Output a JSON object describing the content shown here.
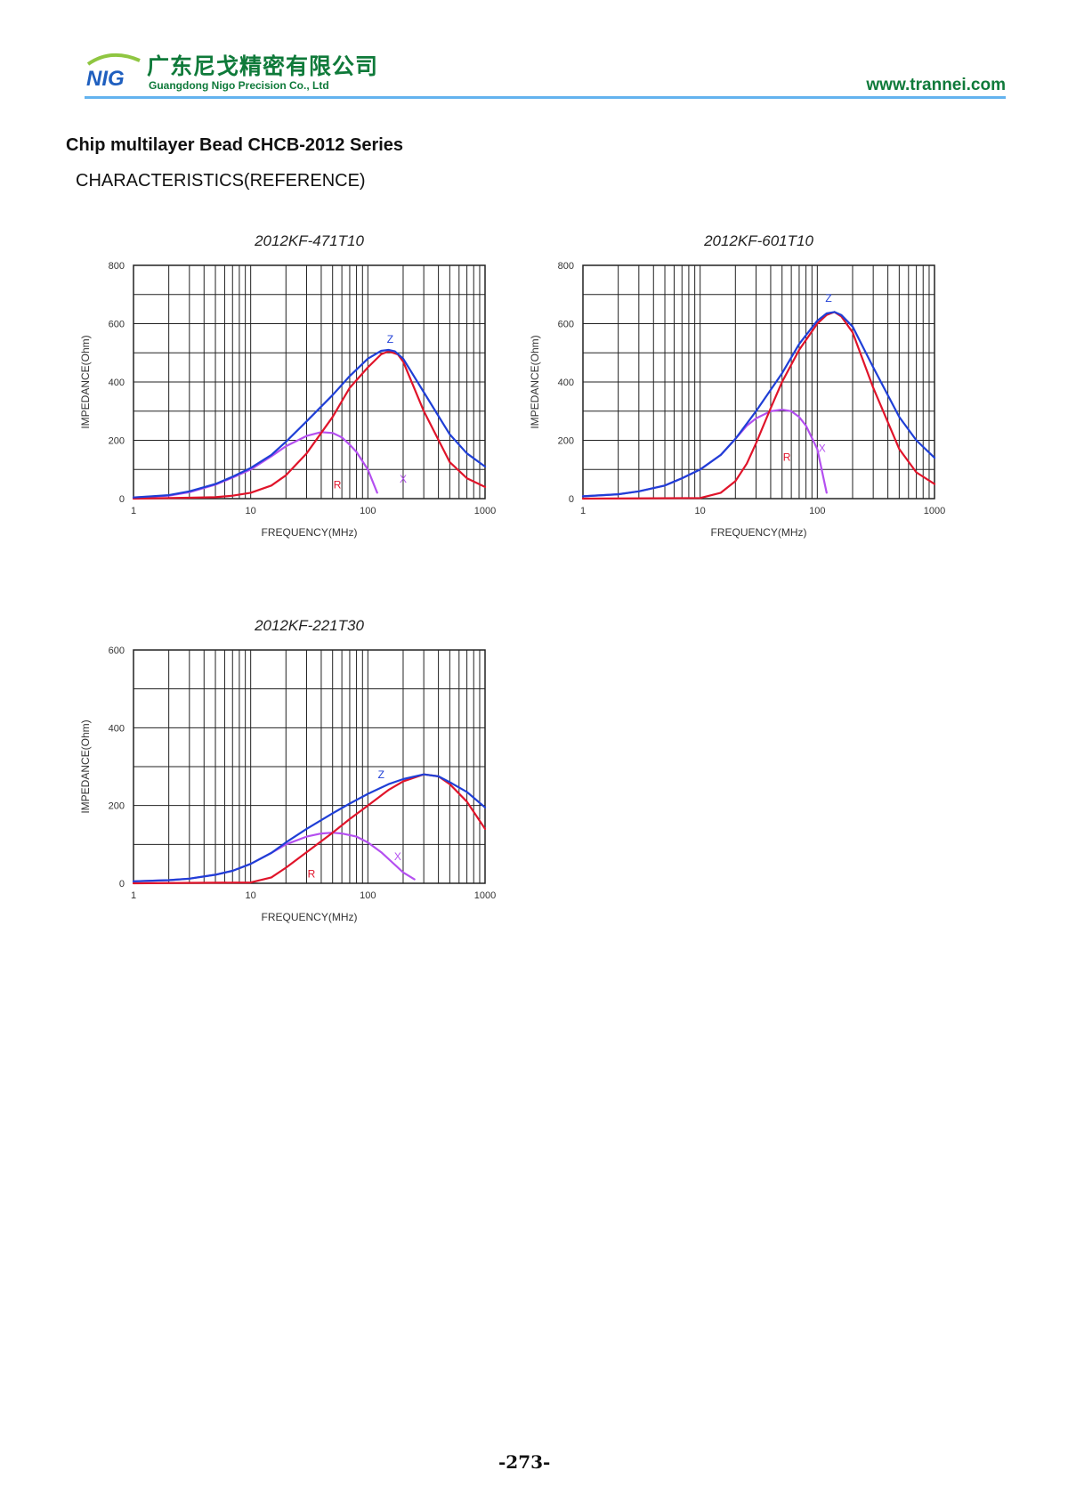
{
  "header": {
    "logo_text": "NIG",
    "company_cn": "广东尼戈精密有限公司",
    "company_en": "Guangdong Nigo Precision Co., Ltd",
    "website": "www.trannei.com"
  },
  "title": "Chip multilayer Bead CHCB-2012 Series",
  "subtitle": "CHARACTERISTICS(REFERENCE)",
  "page_number": "-273-",
  "colors": {
    "Z": "#1f3fd6",
    "R": "#e0142a",
    "X": "#b44ff0",
    "grid": "#222222",
    "brand": "#0f7a3a",
    "rule": "#63b3ef"
  },
  "chart_data": [
    {
      "type": "line",
      "title": "2012KF-471T10",
      "xlabel": "FREQUENCY(MHz)",
      "ylabel": "IMPEDANCE(Ohm)",
      "xscale": "log",
      "xlim": [
        1,
        1000
      ],
      "ylim": [
        0,
        800
      ],
      "xticks": [
        1,
        10,
        100,
        1000
      ],
      "xtick_labels": [
        "1",
        "10",
        "100",
        "1000"
      ],
      "yticks": [
        0,
        200,
        400,
        600,
        800
      ],
      "ytick_labels": [
        "0",
        "200",
        "400",
        "600",
        "800"
      ],
      "grid": true,
      "series": [
        {
          "name": "Z",
          "label_at": [
            155,
            535
          ],
          "x": [
            1,
            2,
            3,
            5,
            7,
            10,
            15,
            20,
            30,
            50,
            70,
            100,
            130,
            150,
            170,
            200,
            300,
            500,
            700,
            1000
          ],
          "values": [
            4,
            12,
            25,
            50,
            75,
            105,
            150,
            195,
            265,
            355,
            420,
            480,
            507,
            510,
            505,
            480,
            365,
            220,
            155,
            110
          ]
        },
        {
          "name": "R",
          "label_at": [
            55,
            35
          ],
          "x": [
            1,
            3,
            5,
            7,
            10,
            15,
            20,
            30,
            50,
            70,
            100,
            130,
            150,
            180,
            200,
            300,
            500,
            700,
            1000
          ],
          "values": [
            0,
            3,
            5,
            10,
            20,
            45,
            80,
            155,
            280,
            380,
            450,
            495,
            505,
            495,
            470,
            300,
            125,
            70,
            40
          ]
        },
        {
          "name": "X",
          "label_at": [
            200,
            55
          ],
          "x": [
            1,
            2,
            3,
            5,
            7,
            10,
            15,
            20,
            30,
            40,
            50,
            60,
            70,
            80,
            100,
            120
          ],
          "values": [
            4,
            10,
            22,
            48,
            72,
            100,
            145,
            180,
            215,
            228,
            225,
            210,
            185,
            160,
            100,
            20
          ]
        }
      ]
    },
    {
      "type": "line",
      "title": "2012KF-601T10",
      "xlabel": "FREQUENCY(MHz)",
      "ylabel": "IMPEDANCE(Ohm)",
      "xscale": "log",
      "xlim": [
        1,
        1000
      ],
      "ylim": [
        0,
        800
      ],
      "xticks": [
        1,
        10,
        100,
        1000
      ],
      "xtick_labels": [
        "1",
        "10",
        "100",
        "1000"
      ],
      "yticks": [
        0,
        200,
        400,
        600,
        800
      ],
      "ytick_labels": [
        "0",
        "200",
        "400",
        "600",
        "800"
      ],
      "grid": true,
      "series": [
        {
          "name": "Z",
          "label_at": [
            125,
            675
          ],
          "x": [
            1,
            2,
            3,
            5,
            7,
            10,
            15,
            20,
            30,
            50,
            70,
            100,
            120,
            140,
            160,
            200,
            300,
            500,
            700,
            1000
          ],
          "values": [
            8,
            15,
            25,
            45,
            70,
            100,
            150,
            205,
            300,
            430,
            530,
            610,
            635,
            640,
            630,
            590,
            450,
            280,
            200,
            140
          ]
        },
        {
          "name": "R",
          "label_at": [
            55,
            130
          ],
          "x": [
            1,
            10,
            15,
            20,
            25,
            30,
            40,
            50,
            70,
            100,
            120,
            140,
            160,
            200,
            300,
            500,
            700,
            1000
          ],
          "values": [
            0,
            2,
            20,
            60,
            120,
            190,
            310,
            400,
            510,
            600,
            630,
            640,
            625,
            570,
            380,
            170,
            90,
            50
          ]
        },
        {
          "name": "X",
          "label_at": [
            110,
            160
          ],
          "x": [
            1,
            2,
            3,
            5,
            7,
            10,
            15,
            20,
            25,
            30,
            40,
            50,
            60,
            70,
            80,
            100,
            120
          ],
          "values": [
            8,
            15,
            25,
            45,
            70,
            100,
            150,
            205,
            250,
            275,
            300,
            305,
            300,
            280,
            250,
            170,
            20
          ]
        }
      ]
    },
    {
      "type": "line",
      "title": "2012KF-221T30",
      "xlabel": "FREQUENCY(MHz)",
      "ylabel": "IMPEDANCE(Ohm)",
      "xscale": "log",
      "xlim": [
        1,
        1000
      ],
      "ylim": [
        0,
        600
      ],
      "xticks": [
        1,
        10,
        100,
        1000
      ],
      "xtick_labels": [
        "1",
        "10",
        "100",
        "1000"
      ],
      "yticks": [
        0,
        200,
        400,
        600
      ],
      "ytick_labels": [
        "0",
        "200",
        "400",
        "600"
      ],
      "grid": true,
      "series": [
        {
          "name": "Z",
          "label_at": [
            130,
            270
          ],
          "x": [
            1,
            2,
            3,
            5,
            7,
            10,
            15,
            20,
            30,
            50,
            70,
            100,
            150,
            200,
            300,
            400,
            500,
            700,
            1000
          ],
          "values": [
            5,
            8,
            12,
            22,
            32,
            50,
            78,
            105,
            140,
            180,
            205,
            230,
            255,
            268,
            280,
            275,
            260,
            235,
            195
          ]
        },
        {
          "name": "R",
          "label_at": [
            33,
            15
          ],
          "x": [
            1,
            10,
            15,
            20,
            30,
            50,
            70,
            100,
            150,
            200,
            300,
            400,
            500,
            700,
            1000
          ],
          "values": [
            0,
            2,
            15,
            40,
            80,
            130,
            165,
            200,
            240,
            262,
            280,
            275,
            255,
            210,
            140
          ]
        },
        {
          "name": "X",
          "label_at": [
            180,
            60
          ],
          "x": [
            1,
            2,
            3,
            5,
            7,
            10,
            15,
            20,
            30,
            40,
            50,
            60,
            80,
            100,
            130,
            160,
            200,
            250
          ],
          "values": [
            5,
            8,
            12,
            22,
            32,
            50,
            78,
            100,
            120,
            128,
            130,
            128,
            120,
            105,
            80,
            55,
            28,
            10
          ]
        }
      ]
    }
  ]
}
